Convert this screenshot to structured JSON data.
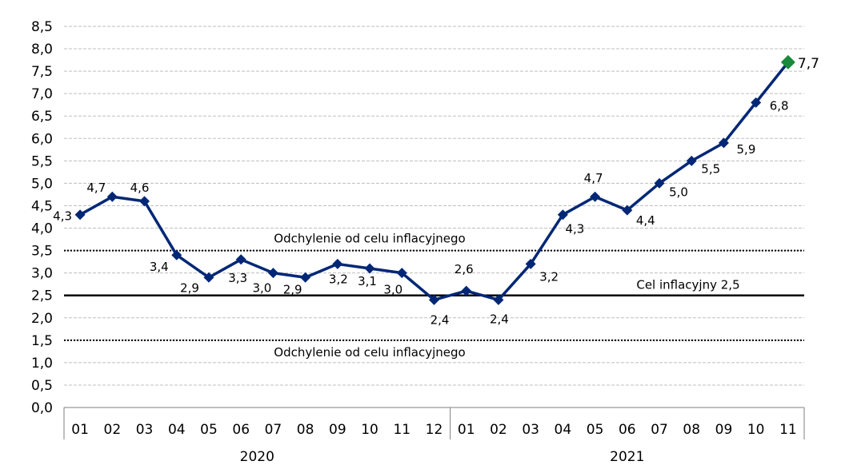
{
  "chart_data": {
    "type": "line",
    "title": "",
    "xlabel": "",
    "ylabel": "",
    "ylim": [
      0,
      8.5
    ],
    "y_ticks": [
      "0,0",
      "0,5",
      "1,0",
      "1,5",
      "2,0",
      "2,5",
      "3,0",
      "3,5",
      "4,0",
      "4,5",
      "5,0",
      "5,5",
      "6,0",
      "6,5",
      "7,0",
      "7,5",
      "8,0",
      "8,5"
    ],
    "grid": true,
    "categories": [
      "01",
      "02",
      "03",
      "04",
      "05",
      "06",
      "07",
      "08",
      "09",
      "10",
      "11",
      "12",
      "01",
      "02",
      "03",
      "04",
      "05",
      "06",
      "07",
      "08",
      "09",
      "10",
      "11"
    ],
    "year_groups": [
      {
        "label": "2020",
        "start": 0,
        "end": 11
      },
      {
        "label": "2021",
        "start": 12,
        "end": 22
      }
    ],
    "series": [
      {
        "values": [
          4.3,
          4.7,
          4.6,
          3.4,
          2.9,
          3.3,
          3.0,
          2.9,
          3.2,
          3.1,
          3.0,
          2.4,
          2.6,
          2.4,
          3.2,
          4.3,
          4.7,
          4.4,
          5.0,
          5.5,
          5.9,
          6.8,
          7.7
        ],
        "labels": [
          "4,3",
          "4,7",
          "4,6",
          "3,4",
          "2,9",
          "3,3",
          "3,0",
          "2,9",
          "3,2",
          "3,1",
          "3,0",
          "2,4",
          "2,6",
          "2,4",
          "3,2",
          "4,3",
          "4,7",
          "4,4",
          "5,0",
          "5,5",
          "5,9",
          "6,8",
          "7,7"
        ],
        "color": "#002776",
        "last_point_color": "#1a8a3c"
      }
    ],
    "reference_lines": [
      {
        "value": 2.5,
        "label": "Cel inflacyjny 2,5",
        "style": "solid"
      },
      {
        "value": 3.5,
        "label": "Odchylenie od celu inflacyjnego",
        "style": "dotted"
      },
      {
        "value": 1.5,
        "label": "Odchylenie od celu inflacyjnego",
        "style": "dotted"
      }
    ]
  }
}
